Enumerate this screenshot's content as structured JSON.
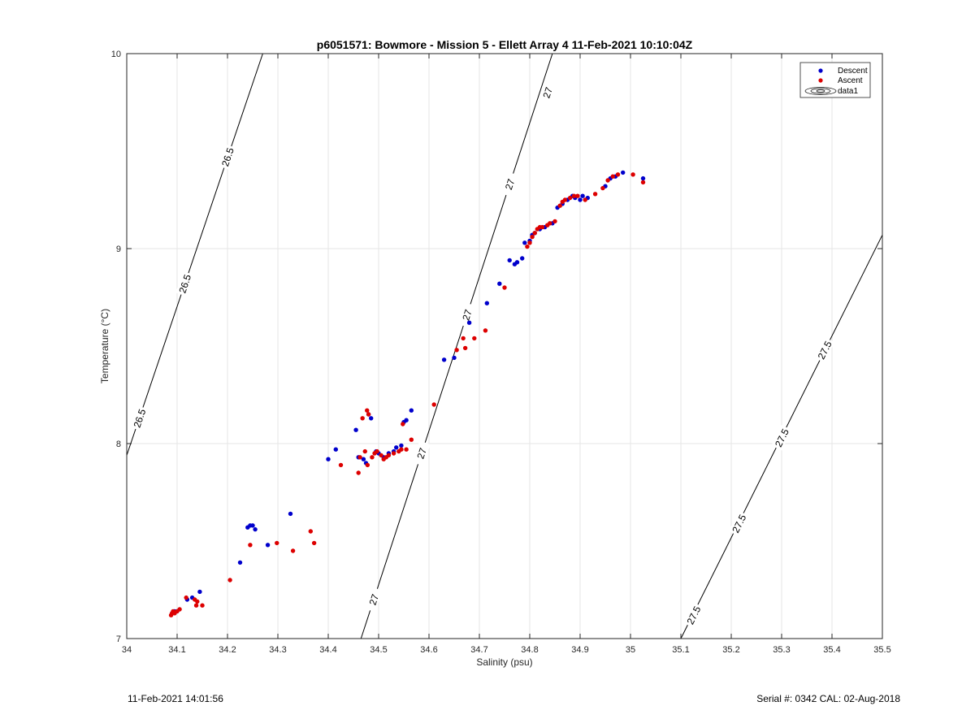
{
  "chart_data": {
    "type": "scatter",
    "title": "p6051571: Bowmore - Mission 5 - Ellett Array 4 11-Feb-2021 10:10:04Z",
    "xlabel": "Salinity (psu)",
    "ylabel": "Temperature (°C)",
    "xlim": [
      34,
      35.5
    ],
    "ylim": [
      7,
      10
    ],
    "xticks": [
      34,
      34.1,
      34.2,
      34.3,
      34.4,
      34.5,
      34.6,
      34.7,
      34.8,
      34.9,
      35,
      35.1,
      35.2,
      35.3,
      35.4,
      35.5
    ],
    "yticks": [
      7,
      8,
      9,
      10
    ],
    "xtick_labels": [
      "34",
      "34.1",
      "34.2",
      "34.3",
      "34.4",
      "34.5",
      "34.6",
      "34.7",
      "34.8",
      "34.9",
      "35",
      "35.1",
      "35.2",
      "35.3",
      "35.4",
      "35.5"
    ],
    "ytick_labels": [
      "7",
      "8",
      "9",
      "10"
    ],
    "grid": true,
    "legend_position": "top-right",
    "legend": [
      "Descent",
      "Ascent",
      "data1"
    ],
    "series": [
      {
        "name": "Descent",
        "color": "#0000cc",
        "points": [
          [
            34.09,
            7.13
          ],
          [
            34.095,
            7.14
          ],
          [
            34.1,
            7.14
          ],
          [
            34.12,
            7.2
          ],
          [
            34.13,
            7.21
          ],
          [
            34.145,
            7.24
          ],
          [
            34.225,
            7.39
          ],
          [
            34.24,
            7.57
          ],
          [
            34.245,
            7.58
          ],
          [
            34.25,
            7.58
          ],
          [
            34.255,
            7.56
          ],
          [
            34.28,
            7.48
          ],
          [
            34.325,
            7.64
          ],
          [
            34.4,
            7.92
          ],
          [
            34.415,
            7.97
          ],
          [
            34.455,
            8.07
          ],
          [
            34.46,
            7.93
          ],
          [
            34.47,
            7.92
          ],
          [
            34.475,
            7.9
          ],
          [
            34.48,
            8.15
          ],
          [
            34.485,
            8.13
          ],
          [
            34.495,
            7.96
          ],
          [
            34.5,
            7.95
          ],
          [
            34.51,
            7.93
          ],
          [
            34.52,
            7.95
          ],
          [
            34.53,
            7.96
          ],
          [
            34.535,
            7.98
          ],
          [
            34.545,
            7.99
          ],
          [
            34.55,
            8.11
          ],
          [
            34.555,
            8.12
          ],
          [
            34.565,
            8.17
          ],
          [
            34.63,
            8.43
          ],
          [
            34.65,
            8.44
          ],
          [
            34.68,
            8.62
          ],
          [
            34.715,
            8.72
          ],
          [
            34.74,
            8.82
          ],
          [
            34.76,
            8.94
          ],
          [
            34.77,
            8.92
          ],
          [
            34.775,
            8.93
          ],
          [
            34.785,
            8.95
          ],
          [
            34.79,
            9.03
          ],
          [
            34.8,
            9.04
          ],
          [
            34.805,
            9.07
          ],
          [
            34.81,
            9.08
          ],
          [
            34.82,
            9.1
          ],
          [
            34.83,
            9.11
          ],
          [
            34.845,
            9.13
          ],
          [
            34.855,
            9.21
          ],
          [
            34.865,
            9.23
          ],
          [
            34.875,
            9.25
          ],
          [
            34.885,
            9.27
          ],
          [
            34.89,
            9.26
          ],
          [
            34.9,
            9.25
          ],
          [
            34.905,
            9.27
          ],
          [
            34.915,
            9.26
          ],
          [
            34.95,
            9.32
          ],
          [
            34.96,
            9.36
          ],
          [
            34.97,
            9.37
          ],
          [
            34.985,
            9.39
          ],
          [
            35.025,
            9.36
          ]
        ]
      },
      {
        "name": "Ascent",
        "color": "#dd0000",
        "points": [
          [
            34.088,
            7.12
          ],
          [
            34.09,
            7.13
          ],
          [
            34.092,
            7.14
          ],
          [
            34.095,
            7.13
          ],
          [
            34.1,
            7.14
          ],
          [
            34.105,
            7.15
          ],
          [
            34.118,
            7.21
          ],
          [
            34.135,
            7.2
          ],
          [
            34.14,
            7.19
          ],
          [
            34.138,
            7.17
          ],
          [
            34.15,
            7.17
          ],
          [
            34.205,
            7.3
          ],
          [
            34.245,
            7.48
          ],
          [
            34.298,
            7.49
          ],
          [
            34.33,
            7.45
          ],
          [
            34.365,
            7.55
          ],
          [
            34.372,
            7.49
          ],
          [
            34.425,
            7.89
          ],
          [
            34.46,
            7.85
          ],
          [
            34.463,
            7.93
          ],
          [
            34.468,
            8.13
          ],
          [
            34.473,
            7.96
          ],
          [
            34.477,
            8.17
          ],
          [
            34.478,
            7.89
          ],
          [
            34.48,
            8.15
          ],
          [
            34.487,
            7.93
          ],
          [
            34.492,
            7.95
          ],
          [
            34.497,
            7.96
          ],
          [
            34.505,
            7.94
          ],
          [
            34.51,
            7.92
          ],
          [
            34.515,
            7.93
          ],
          [
            34.52,
            7.94
          ],
          [
            34.53,
            7.95
          ],
          [
            34.54,
            7.96
          ],
          [
            34.545,
            7.97
          ],
          [
            34.548,
            8.1
          ],
          [
            34.555,
            7.97
          ],
          [
            34.565,
            8.02
          ],
          [
            34.61,
            8.2
          ],
          [
            34.655,
            8.48
          ],
          [
            34.668,
            8.54
          ],
          [
            34.672,
            8.49
          ],
          [
            34.69,
            8.54
          ],
          [
            34.712,
            8.58
          ],
          [
            34.75,
            8.8
          ],
          [
            34.795,
            9.01
          ],
          [
            34.8,
            9.03
          ],
          [
            34.805,
            9.06
          ],
          [
            34.81,
            9.08
          ],
          [
            34.815,
            9.1
          ],
          [
            34.82,
            9.11
          ],
          [
            34.825,
            9.11
          ],
          [
            34.835,
            9.12
          ],
          [
            34.84,
            9.13
          ],
          [
            34.85,
            9.14
          ],
          [
            34.86,
            9.22
          ],
          [
            34.865,
            9.24
          ],
          [
            34.87,
            9.25
          ],
          [
            34.88,
            9.26
          ],
          [
            34.888,
            9.27
          ],
          [
            34.895,
            9.27
          ],
          [
            34.91,
            9.25
          ],
          [
            34.93,
            9.28
          ],
          [
            34.945,
            9.31
          ],
          [
            34.955,
            9.35
          ],
          [
            34.965,
            9.37
          ],
          [
            34.975,
            9.38
          ],
          [
            35.005,
            9.38
          ],
          [
            35.025,
            9.34
          ]
        ]
      }
    ],
    "isopycnals": [
      {
        "label": "26.5",
        "points": [
          [
            34.0,
            7.94
          ],
          [
            34.27,
            10.0
          ]
        ],
        "label_positions": [
          [
            34.025,
            8.13
          ],
          [
            34.115,
            8.82
          ],
          [
            34.2,
            9.47
          ]
        ]
      },
      {
        "label": "27",
        "points": [
          [
            34.465,
            7.0
          ],
          [
            34.845,
            10.0
          ]
        ],
        "label_positions": [
          [
            34.49,
            7.2
          ],
          [
            34.585,
            7.95
          ],
          [
            34.675,
            8.66
          ],
          [
            34.76,
            9.33
          ],
          [
            34.835,
            9.8
          ]
        ]
      },
      {
        "label": "27.5",
        "points": [
          [
            35.1,
            7.0
          ],
          [
            35.5,
            9.07
          ]
        ],
        "label_positions": [
          [
            35.125,
            7.12
          ],
          [
            35.215,
            7.59
          ],
          [
            35.3,
            8.03
          ],
          [
            35.385,
            8.48
          ]
        ]
      }
    ]
  },
  "footer": {
    "timestamp": "11-Feb-2021 14:01:56",
    "serial_cal": "Serial #: 0342  CAL: 02-Aug-2018"
  }
}
